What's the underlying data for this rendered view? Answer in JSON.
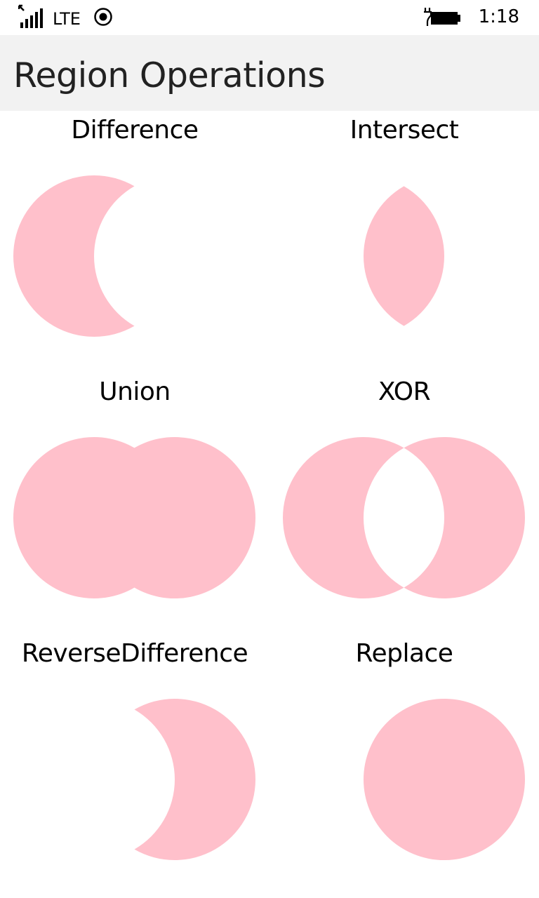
{
  "status_bar": {
    "network": "LTE",
    "time": "1:18",
    "icons": [
      "signal-strength-icon",
      "location-icon",
      "battery-charging-icon"
    ]
  },
  "header": {
    "title": "Region Operations"
  },
  "theme": {
    "fill_color": "#ffc0cb",
    "header_bg": "#f2f2f2"
  },
  "operations": [
    {
      "label": "Difference",
      "op": "difference"
    },
    {
      "label": "Intersect",
      "op": "intersect"
    },
    {
      "label": "Union",
      "op": "union"
    },
    {
      "label": "XOR",
      "op": "xor"
    },
    {
      "label": "ReverseDifference",
      "op": "reverse-difference"
    },
    {
      "label": "Replace",
      "op": "replace"
    }
  ]
}
